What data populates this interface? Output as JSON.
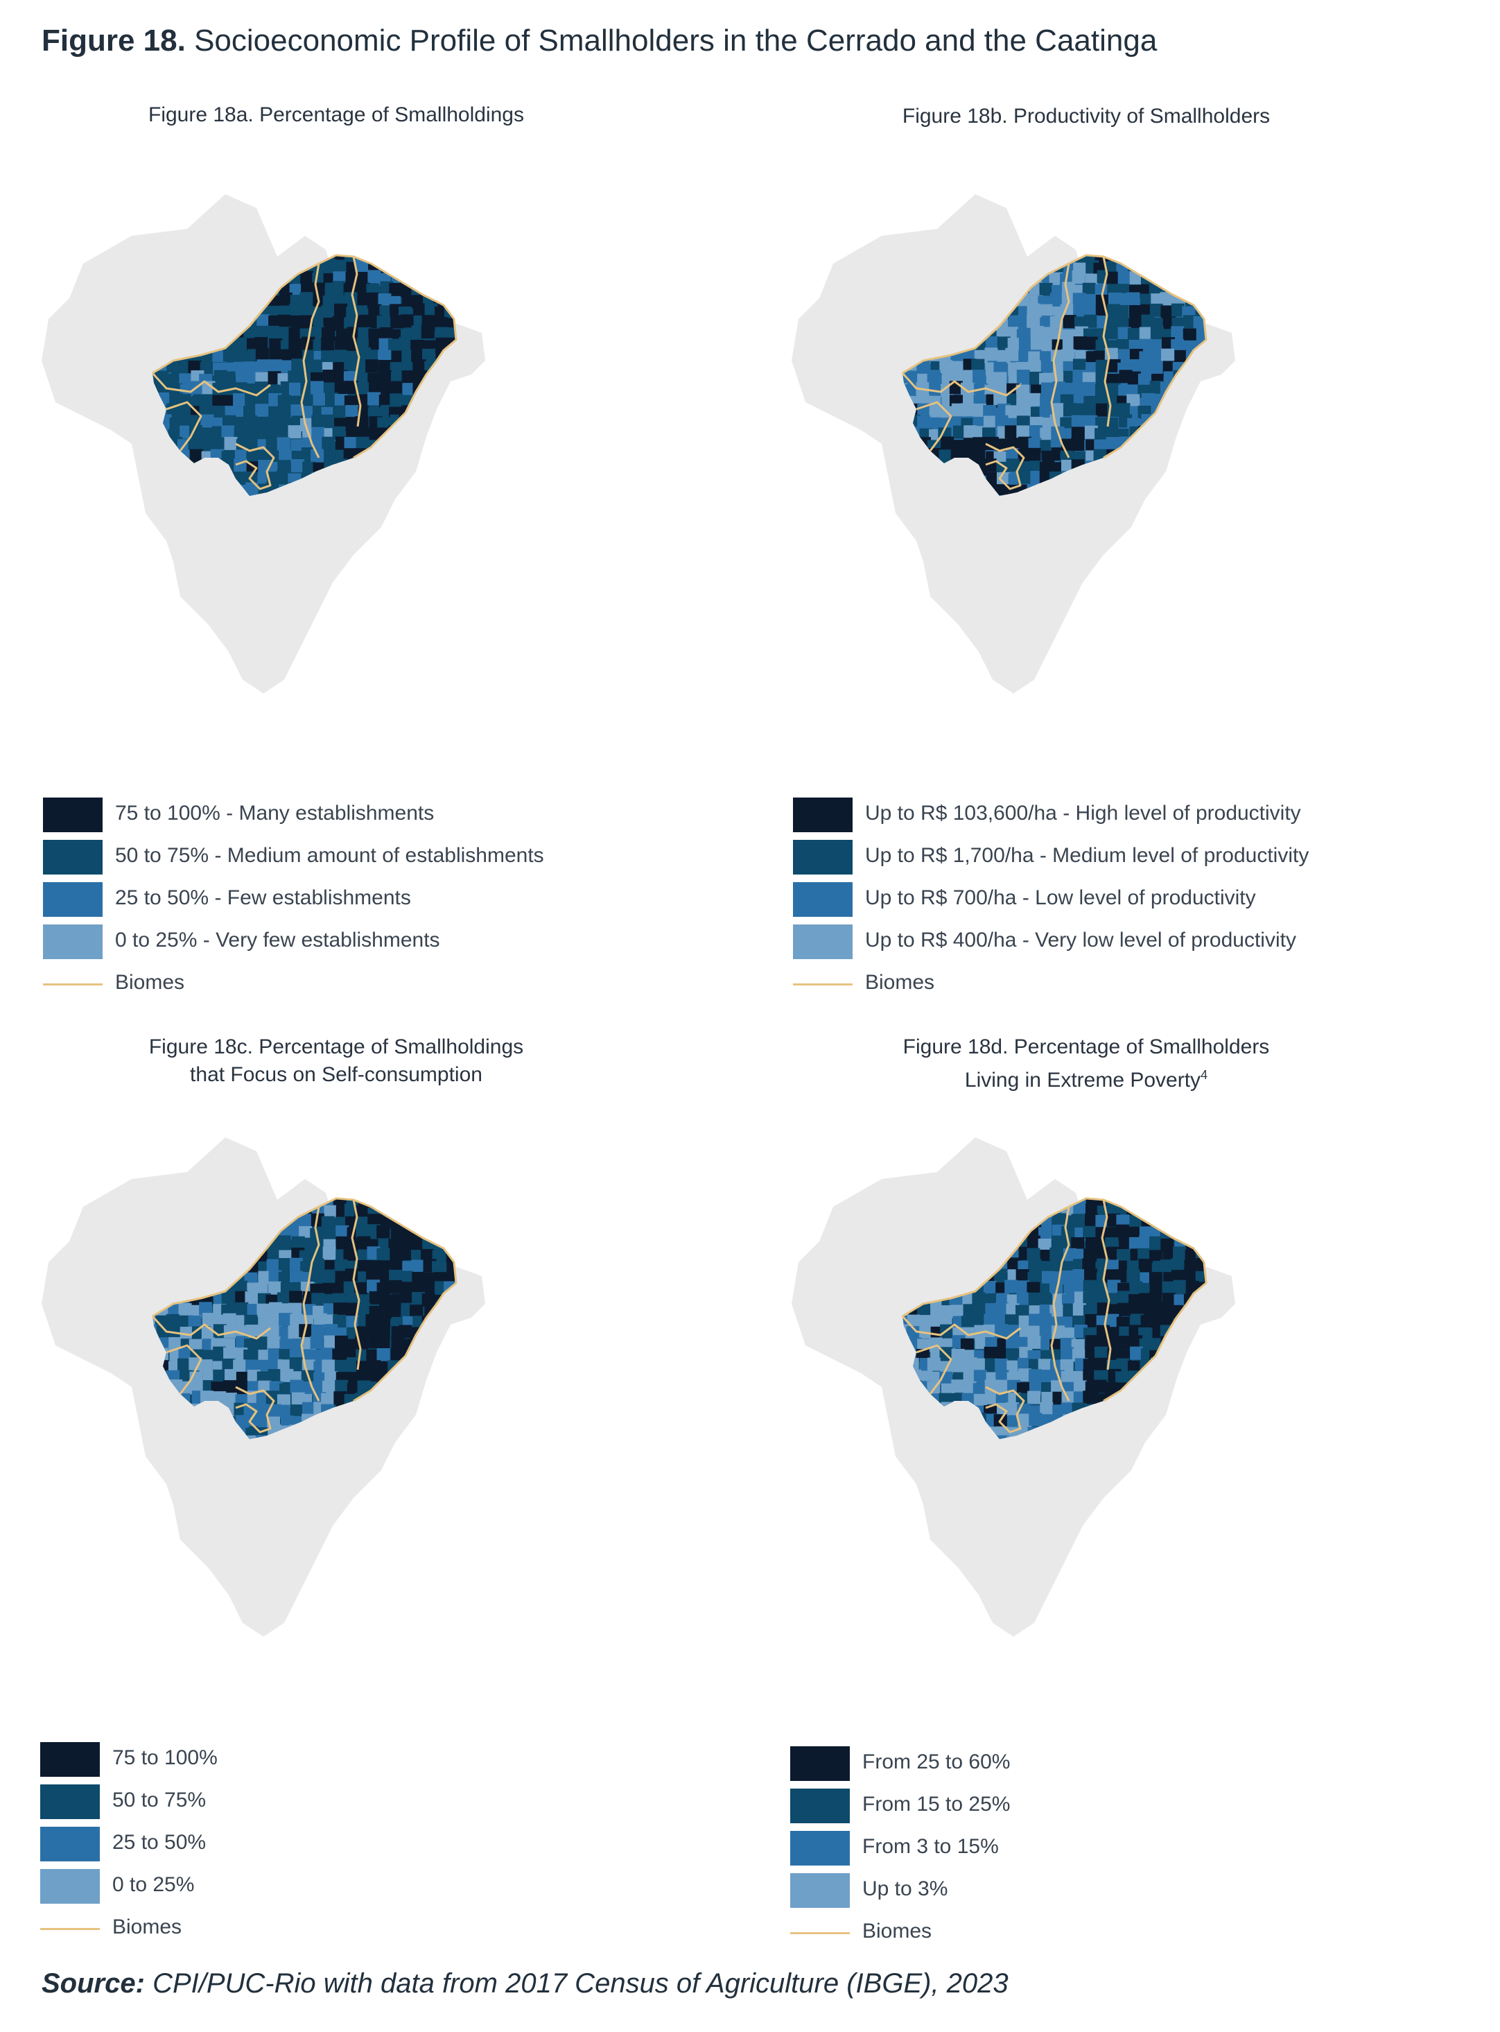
{
  "figure": {
    "label": "Figure 18.",
    "title": "Socioeconomic Profile of Smallholders in the Cerrado and the Caatinga"
  },
  "colors": {
    "class1": "#0c1a2e",
    "class2": "#0d4a6b",
    "class3": "#2a70a8",
    "class4": "#6fa0c8",
    "biome_line": "#e6c27f",
    "basemap": "#e9e9e9"
  },
  "panels": [
    {
      "id": "a",
      "title_line1": "Figure 18a. Percentage of Smallholdings",
      "title_line2": "",
      "legend": [
        "75 to 100% - Many establishments",
        "50 to 75% - Medium amount of establishments",
        "25 to 50% - Few establishments",
        "0 to 25% - Very few establishments"
      ],
      "biomes_label": "Biomes"
    },
    {
      "id": "b",
      "title_line1": "Figure 18b. Productivity of Smallholders",
      "title_line2": "",
      "legend": [
        "Up to R$ 103,600/ha - High level of productivity",
        "Up to R$ 1,700/ha - Medium level of productivity",
        "Up to R$ 700/ha - Low level of productivity",
        "Up to R$ 400/ha - Very low level of productivity"
      ],
      "biomes_label": "Biomes"
    },
    {
      "id": "c",
      "title_line1": "Figure 18c. Percentage of Smallholdings",
      "title_line2": "that Focus on Self-consumption",
      "legend": [
        "75 to 100%",
        "50 to 75%",
        "25 to 50%",
        "0 to 25%"
      ],
      "biomes_label": "Biomes"
    },
    {
      "id": "d",
      "title_line1": "Figure 18d. Percentage of Smallholders",
      "title_line2": "Living in Extreme Poverty",
      "title_sup": "4",
      "legend": [
        "From 25 to 60%",
        "From 15 to 25%",
        "From 3 to 15%",
        "Up to 3%"
      ],
      "biomes_label": "Biomes"
    }
  ],
  "source": {
    "label": "Source:",
    "text": "CPI/PUC-Rio with data from 2017 Census of Agriculture (IBGE), 2023"
  }
}
